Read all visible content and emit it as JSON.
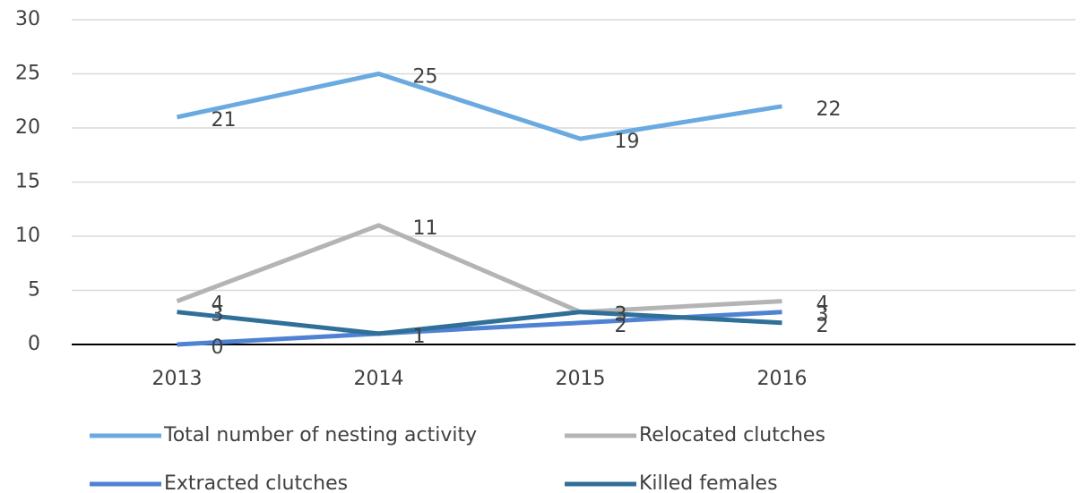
{
  "chart_data": {
    "type": "line",
    "categories": [
      "2013",
      "2014",
      "2015",
      "2016"
    ],
    "series": [
      {
        "name": "Total number of nesting activity",
        "color": "#6aaae0",
        "values": [
          21,
          25,
          19,
          22
        ]
      },
      {
        "name": "Relocated clutches",
        "color": "#b4b4b4",
        "values": [
          4,
          11,
          3,
          4
        ]
      },
      {
        "name": "Extracted clutches",
        "color": "#4f82d2",
        "values": [
          0,
          1,
          2,
          3
        ]
      },
      {
        "name": "Killed females",
        "color": "#2f6f98",
        "values": [
          3,
          1,
          3,
          2
        ]
      }
    ],
    "ylim": [
      0,
      30
    ],
    "yticks": [
      0,
      5,
      10,
      15,
      20,
      25,
      30
    ],
    "grid": true,
    "legend": "bottom"
  }
}
